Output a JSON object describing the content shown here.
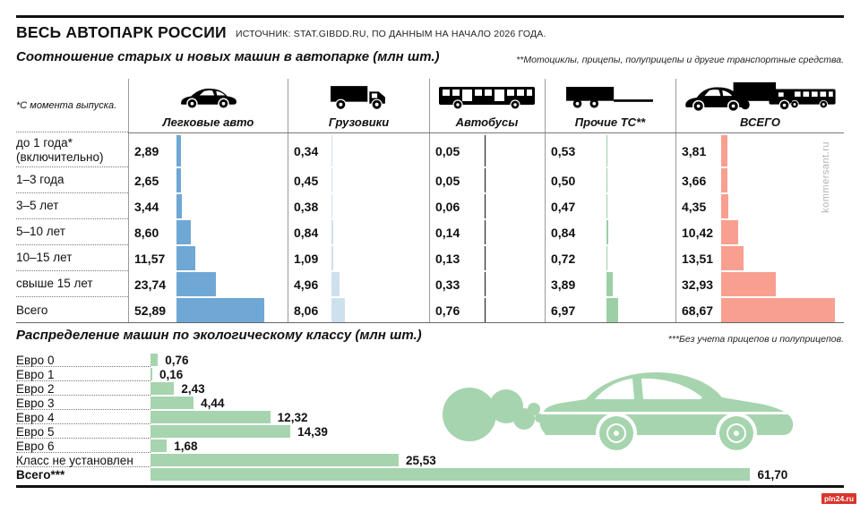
{
  "header": {
    "title": "ВЕСЬ АВТОПАРК РОССИИ",
    "source": "ИСТОЧНИК: STAT.GIBDD.RU, ПО ДАННЫМ НА НАЧАЛО 2026 ГОДА."
  },
  "section_age": {
    "title": "Соотношение старых и новых машин в автопарке (млн шт.)",
    "footnote": "**Мотоциклы, прицепы, полуприцепы и другие транспортные средства.",
    "age_note": "*С момента выпуска."
  },
  "section_eco": {
    "title": "Распределение машин по экологическому классу (млн шт.)",
    "footnote": "***Без учета прицепов и полуприцепов."
  },
  "watermarks": {
    "vertical": "kommersant.ru",
    "badge": "pln24.ru"
  },
  "colors": {
    "cars": "#6fa8d4",
    "trucks": "#cfe0ed",
    "buses": "#111111",
    "other": "#9ccfa5",
    "total": "#f89f90",
    "eco": "#a6d4ae"
  },
  "chart_data": [
    {
      "type": "table",
      "title": "Соотношение старых и новых машин в автопарке (млн шт.)",
      "categories": [
        "до 1 года*\n(включительно)",
        "1–3 года",
        "3–5 лет",
        "5–10 лет",
        "10–15 лет",
        "свыше 15 лет",
        "Всего"
      ],
      "series": [
        {
          "name": "Легковые авто",
          "icon": "car-icon",
          "color": "#6fa8d4",
          "values": [
            2.89,
            2.65,
            3.44,
            8.6,
            11.57,
            23.74,
            52.89
          ]
        },
        {
          "name": "Грузовики",
          "icon": "truck-icon",
          "color": "#cfe0ed",
          "values": [
            0.34,
            0.45,
            0.38,
            0.84,
            1.09,
            4.96,
            8.06
          ]
        },
        {
          "name": "Автобусы",
          "icon": "bus-icon",
          "color": "#111111",
          "values": [
            0.05,
            0.05,
            0.06,
            0.14,
            0.13,
            0.33,
            0.76
          ]
        },
        {
          "name": "Прочие ТС**",
          "icon": "trailer-icon",
          "color": "#9ccfa5",
          "values": [
            0.53,
            0.5,
            0.47,
            0.84,
            0.72,
            3.89,
            6.97
          ]
        },
        {
          "name": "ВСЕГО",
          "icon": "fleet-icon",
          "color": "#f89f90",
          "values": [
            3.81,
            3.66,
            4.35,
            10.42,
            13.51,
            32.93,
            68.67
          ]
        }
      ],
      "unit": "млн шт.",
      "value_format": "comma-decimal-2"
    },
    {
      "type": "bar",
      "title": "Распределение машин по экологическому классу (млн шт.)",
      "categories": [
        "Евро 0",
        "Евро 1",
        "Евро 2",
        "Евро 3",
        "Евро 4",
        "Евро 5",
        "Евро 6",
        "Класс не установлен",
        "Всего***"
      ],
      "values": [
        0.76,
        0.16,
        2.43,
        4.44,
        12.32,
        14.39,
        1.68,
        25.53,
        61.7
      ],
      "bar_color": "#a6d4ae",
      "unit": "млн шт.",
      "value_format": "comma-decimal-2"
    }
  ]
}
